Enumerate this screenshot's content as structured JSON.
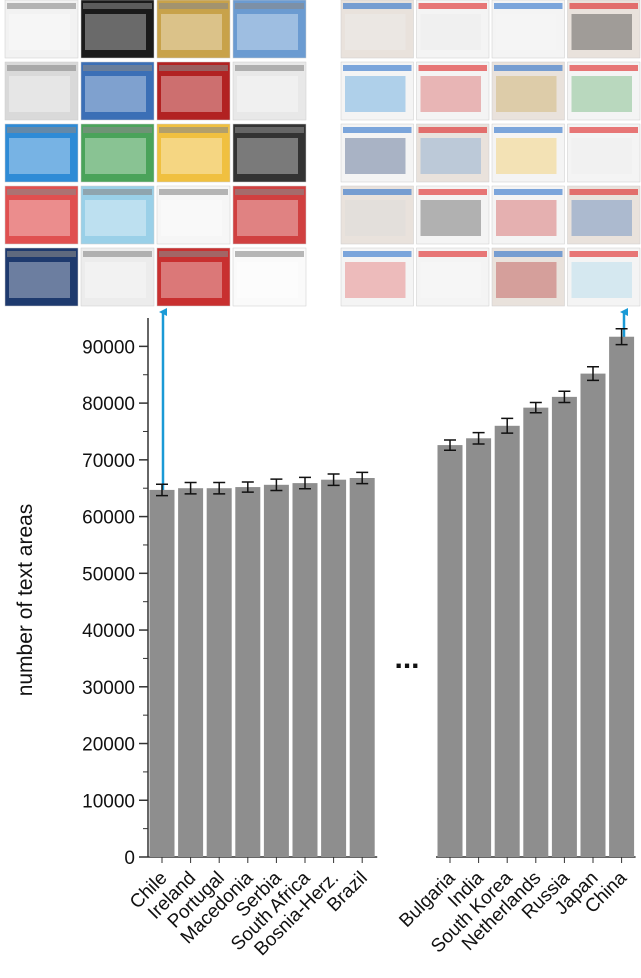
{
  "chart_data": {
    "type": "bar",
    "y_label": "number of text areas",
    "categories": [
      "Chile",
      "Ireland",
      "Portugal",
      "Macedonia",
      "Serbia",
      "South Africa",
      "Bosnia-Herz.",
      "Brazil",
      "Bulgaria",
      "India",
      "South Korea",
      "Netherlands",
      "Russia",
      "Japan",
      "China"
    ],
    "gap_after": 7,
    "gap_label": "...",
    "series": [
      {
        "color": "#8e8e8e",
        "values": [
          64700,
          65000,
          65000,
          65200,
          65600,
          65900,
          66500,
          66800,
          72600,
          73800,
          76000,
          79200,
          81100,
          85200,
          91700
        ],
        "errors": [
          1000,
          1000,
          1000,
          900,
          1000,
          1000,
          1000,
          1000,
          900,
          1000,
          1300,
          900,
          1000,
          1200,
          1400
        ]
      }
    ],
    "ylim": [
      0,
      95000
    ],
    "yticks": [
      0,
      10000,
      20000,
      30000,
      40000,
      50000,
      60000,
      70000,
      80000,
      90000
    ],
    "yminorticks": [
      5000,
      15000,
      25000,
      35000,
      45000,
      55000,
      65000,
      75000,
      85000
    ]
  }
}
